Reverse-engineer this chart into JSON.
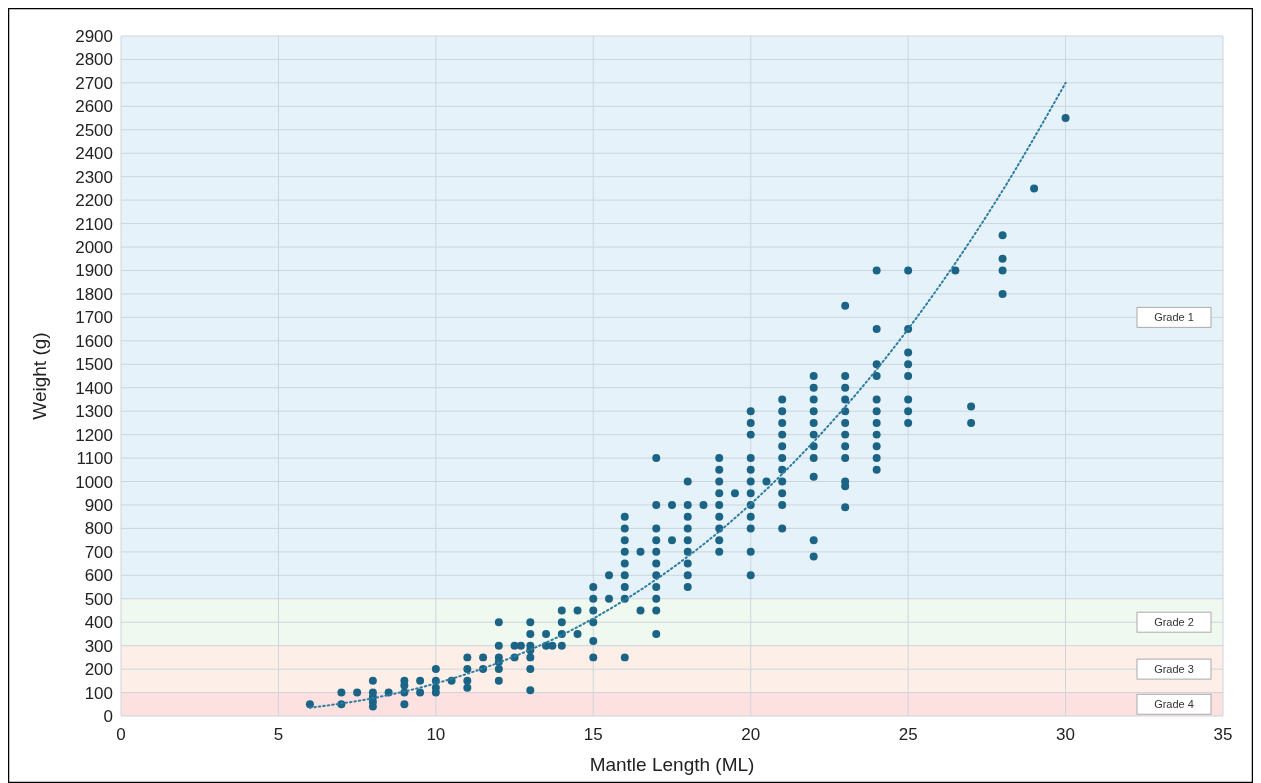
{
  "chart_data": {
    "type": "scatter",
    "xlabel": "Mantle Length (ML)",
    "ylabel": "Weight (g)",
    "xlim": [
      0,
      35
    ],
    "xticks": [
      0,
      5,
      10,
      15,
      20,
      25,
      30,
      35
    ],
    "ylim": [
      0,
      2900
    ],
    "yticks": [
      0,
      100,
      200,
      300,
      400,
      500,
      600,
      700,
      800,
      900,
      1000,
      1100,
      1200,
      1300,
      1400,
      1500,
      1600,
      1700,
      1800,
      1900,
      2000,
      2100,
      2200,
      2300,
      2400,
      2500,
      2600,
      2700,
      2800,
      2900
    ],
    "grid": true,
    "marker": "circle",
    "bands": [
      {
        "axis": "y",
        "from": 500,
        "to": 2900,
        "label": "Grade 1",
        "color": "#e5f2fa"
      },
      {
        "axis": "y",
        "from": 300,
        "to": 500,
        "label": "Grade 2",
        "color": "#eff9f0"
      },
      {
        "axis": "y",
        "from": 100,
        "to": 300,
        "label": "Grade 3",
        "color": "#fdefe7"
      },
      {
        "axis": "y",
        "from": 0,
        "to": 100,
        "label": "Grade 4",
        "color": "#fde0e0"
      }
    ],
    "series": [
      {
        "color": "#1b6486",
        "x": [
          6,
          7,
          7,
          7.5,
          8,
          8,
          8,
          8,
          8,
          8.5,
          9,
          9,
          9,
          9,
          9.5,
          9.5,
          10,
          10,
          10,
          10,
          10.5,
          11,
          11,
          11,
          11,
          11.5,
          11.5,
          12,
          12,
          12,
          12,
          12,
          12,
          12.5,
          12.5,
          12.7,
          13,
          13,
          13,
          13,
          13,
          13,
          13,
          13.5,
          13.5,
          13.7,
          14,
          14,
          14,
          14,
          14.5,
          14.5,
          15,
          15,
          15,
          15,
          15,
          15,
          15.5,
          15.5,
          16,
          16,
          16,
          16,
          16,
          16,
          16,
          16,
          16,
          16.5,
          16.5,
          17,
          17,
          17,
          17,
          17,
          17,
          17,
          17,
          17,
          17,
          17,
          17.5,
          17.5,
          18,
          18,
          18,
          18,
          18,
          18,
          18,
          18,
          18,
          18.5,
          19,
          19,
          19,
          19,
          19,
          19,
          19,
          19,
          19,
          19.5,
          20,
          20,
          20,
          20,
          20,
          20,
          20,
          20,
          20,
          20,
          20,
          20,
          20.5,
          21,
          21,
          21,
          21,
          21,
          21,
          21,
          21,
          21,
          21,
          21,
          22,
          22,
          22,
          22,
          22,
          22,
          22,
          22,
          22,
          22,
          22,
          23,
          23,
          23,
          23,
          23,
          23,
          23,
          23,
          23,
          23,
          23,
          23,
          24,
          24,
          24,
          24,
          24,
          24,
          24,
          24,
          24,
          24,
          24,
          25,
          25,
          25,
          25,
          25,
          25,
          25,
          25,
          26.5,
          27,
          27,
          28,
          28,
          28,
          28,
          29,
          30
        ],
        "values": [
          50,
          50,
          100,
          100,
          40,
          60,
          80,
          100,
          150,
          100,
          50,
          100,
          130,
          150,
          100,
          150,
          100,
          120,
          150,
          200,
          150,
          120,
          150,
          200,
          250,
          200,
          250,
          150,
          200,
          230,
          250,
          300,
          400,
          250,
          300,
          300,
          110,
          200,
          250,
          280,
          300,
          350,
          400,
          300,
          350,
          300,
          300,
          350,
          400,
          450,
          350,
          450,
          250,
          320,
          400,
          450,
          500,
          550,
          500,
          600,
          250,
          500,
          550,
          600,
          650,
          700,
          750,
          800,
          850,
          450,
          700,
          350,
          450,
          500,
          550,
          600,
          650,
          700,
          750,
          800,
          900,
          1100,
          750,
          900,
          550,
          600,
          650,
          700,
          750,
          800,
          850,
          900,
          1000,
          900,
          700,
          750,
          800,
          850,
          900,
          950,
          1000,
          1050,
          1100,
          950,
          600,
          700,
          800,
          850,
          900,
          950,
          1000,
          1050,
          1100,
          1200,
          1250,
          1300,
          1000,
          800,
          900,
          950,
          1000,
          1050,
          1100,
          1150,
          1200,
          1250,
          1300,
          1350,
          680,
          750,
          1020,
          1100,
          1150,
          1200,
          1250,
          1300,
          1350,
          1400,
          1450,
          890,
          980,
          1000,
          1100,
          1150,
          1200,
          1250,
          1300,
          1350,
          1400,
          1450,
          1750,
          1050,
          1100,
          1150,
          1200,
          1250,
          1300,
          1350,
          1450,
          1500,
          1650,
          1900,
          1250,
          1300,
          1350,
          1450,
          1500,
          1550,
          1650,
          1900,
          1900,
          1250,
          1320,
          1800,
          1900,
          1950,
          2050,
          2250,
          2550
        ]
      },
      {
        "type": "line",
        "color": "#2f7ca3",
        "line_style": "dotted",
        "marker": "none",
        "x": [
          6,
          8,
          10,
          12,
          14,
          16,
          18,
          20,
          22,
          24,
          26,
          28,
          30
        ],
        "values": [
          35,
          76,
          139,
          228,
          345,
          495,
          680,
          904,
          1170,
          1478,
          1835,
          2241,
          2700
        ]
      }
    ]
  }
}
